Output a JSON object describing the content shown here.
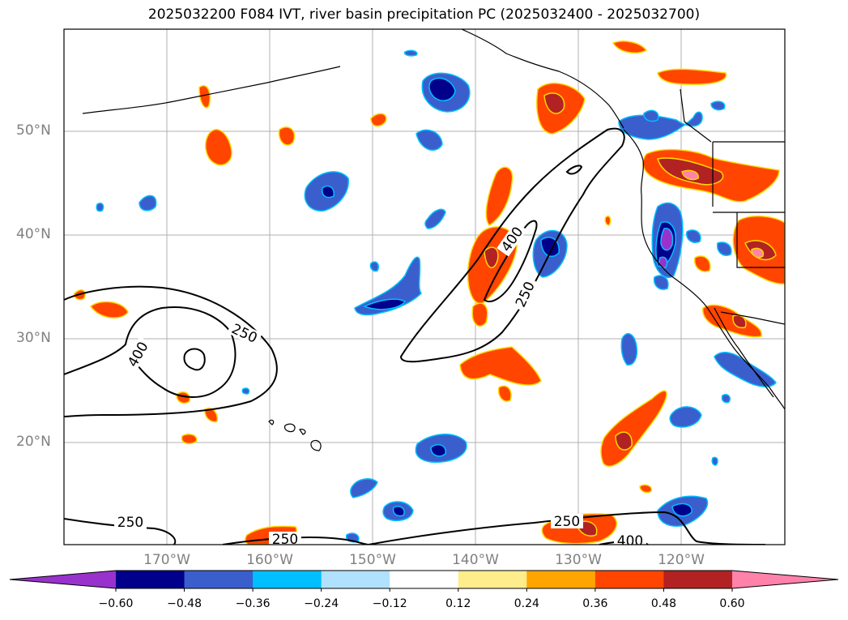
{
  "title": "2025032200 F084 IVT, river basin precipitation PC (2025032400 - 2025032700)",
  "map": {
    "lat_labels": [
      "50°N",
      "40°N",
      "30°N",
      "20°N"
    ],
    "lon_labels": [
      "170°W",
      "160°W",
      "150°W",
      "140°W",
      "130°W",
      "120°W"
    ],
    "contour_labels": [
      "250",
      "400",
      "250",
      "400",
      "250",
      "250",
      "250",
      "400"
    ],
    "contour_color": "#000000",
    "coastline_color": "#000000",
    "gridline_color": "#b0b0b0"
  },
  "colorbar": {
    "levels": [
      "−0.60",
      "−0.48",
      "−0.36",
      "−0.24",
      "−0.12",
      "0.12",
      "0.24",
      "0.36",
      "0.48",
      "0.60"
    ],
    "colors": [
      "#9932cc",
      "#00008b",
      "#3a5fcd",
      "#00bfff",
      "#b0e2ff",
      "#ffffff",
      "#ffec8b",
      "#ffa500",
      "#ff4500",
      "#b22222",
      "#ff82ab"
    ],
    "extend": "both"
  }
}
